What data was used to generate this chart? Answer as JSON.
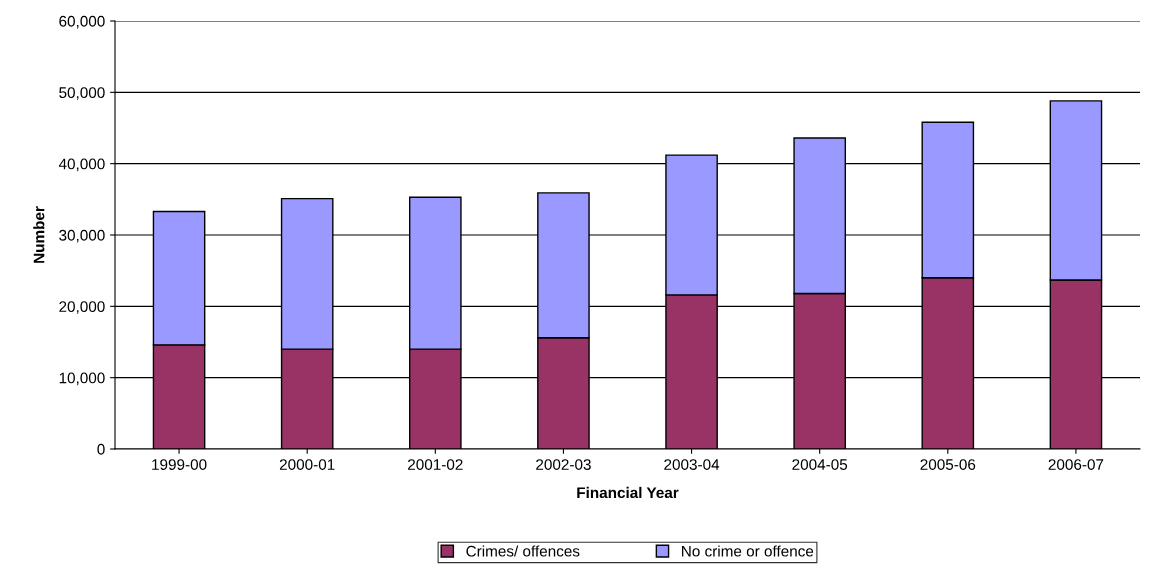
{
  "chart_data": {
    "type": "bar",
    "stacked": true,
    "xlabel": "Financial Year",
    "ylabel": "Number",
    "categories": [
      "1999-00",
      "2000-01",
      "2001-02",
      "2002-03",
      "2003-04",
      "2004-05",
      "2005-06",
      "2006-07"
    ],
    "series": [
      {
        "name": "Crimes/ offences",
        "color": "#993366",
        "values": [
          14600,
          14000,
          14000,
          15600,
          21600,
          21800,
          24000,
          23700
        ]
      },
      {
        "name": "No crime or offence",
        "color": "#9999ff",
        "values": [
          18700,
          21100,
          21300,
          20300,
          19600,
          21800,
          21800,
          25100
        ]
      }
    ],
    "ylim": [
      0,
      60000
    ],
    "yticks": [
      0,
      {
        "value": 10000,
        "label": "10,000"
      },
      {
        "value": 20000,
        "label": "20,000"
      },
      {
        "value": 30000,
        "label": "30,000"
      },
      {
        "value": 40000,
        "label": "40,000"
      },
      {
        "value": 50000,
        "label": "50,000"
      },
      {
        "value": 60000,
        "label": "60,000"
      }
    ],
    "grid": "y",
    "legend": "bottom"
  }
}
